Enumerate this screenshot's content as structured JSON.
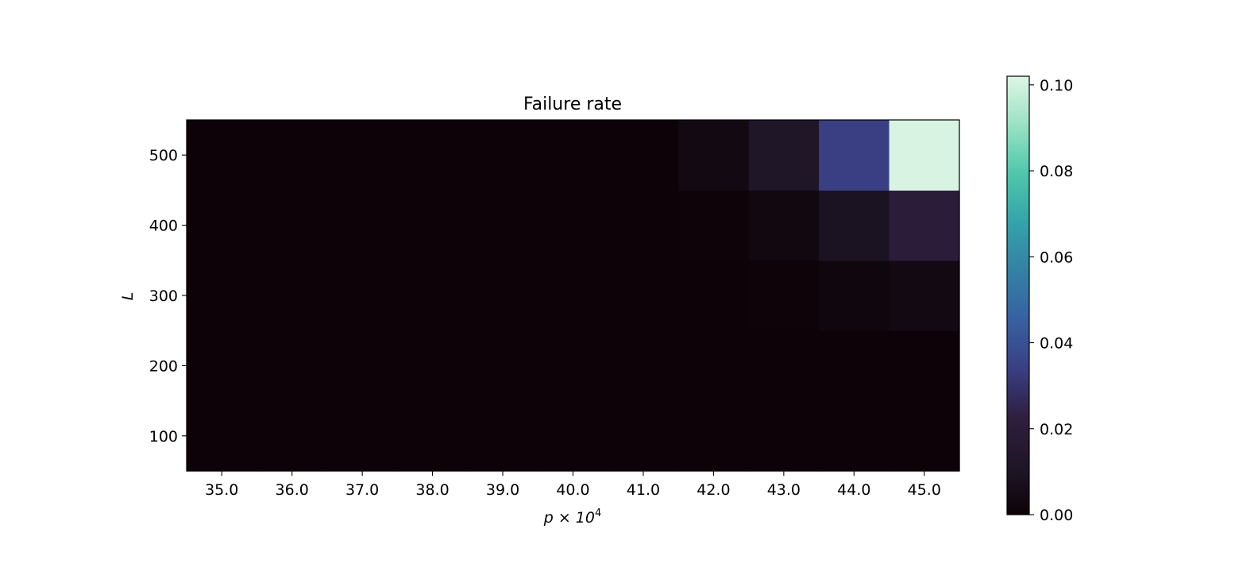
{
  "chart_data": {
    "type": "heatmap",
    "title": "Failure rate",
    "xlabel": "p × 10",
    "xlabel_exponent": "4",
    "ylabel": "L",
    "x": [
      35.0,
      36.0,
      37.0,
      38.0,
      39.0,
      40.0,
      41.0,
      42.0,
      43.0,
      44.0,
      45.0
    ],
    "x_tick_labels": [
      "35.0",
      "36.0",
      "37.0",
      "38.0",
      "39.0",
      "40.0",
      "41.0",
      "42.0",
      "43.0",
      "44.0",
      "45.0"
    ],
    "y": [
      100,
      200,
      300,
      400,
      500
    ],
    "y_tick_labels": [
      "100",
      "200",
      "300",
      "400",
      "500"
    ],
    "values": [
      [
        0.0,
        0.0,
        0.0,
        0.0,
        0.0,
        0.0,
        0.0,
        0.0,
        0.0,
        0.0,
        0.0
      ],
      [
        0.0,
        0.0,
        0.0,
        0.0,
        0.0,
        0.0,
        0.0,
        0.0,
        0.0,
        0.0,
        0.0
      ],
      [
        0.0,
        0.0,
        0.0,
        0.0,
        0.0,
        0.0,
        0.0,
        0.0002,
        0.0005,
        0.002,
        0.004
      ],
      [
        0.0,
        0.0,
        0.0,
        0.0,
        0.0,
        0.0,
        0.0,
        0.0005,
        0.003,
        0.009,
        0.02
      ],
      [
        0.0,
        0.0,
        0.0,
        0.0,
        0.0,
        0.0,
        0.0,
        0.004,
        0.011,
        0.034,
        0.101
      ]
    ],
    "colorbar": {
      "colormap": "mako",
      "vmin": 0.0,
      "vmax": 0.102,
      "ticks": [
        0.0,
        0.02,
        0.04,
        0.06,
        0.08,
        0.1
      ],
      "tick_labels": [
        "0.00",
        "0.02",
        "0.04",
        "0.06",
        "0.08",
        "0.10"
      ]
    },
    "grid": false
  }
}
